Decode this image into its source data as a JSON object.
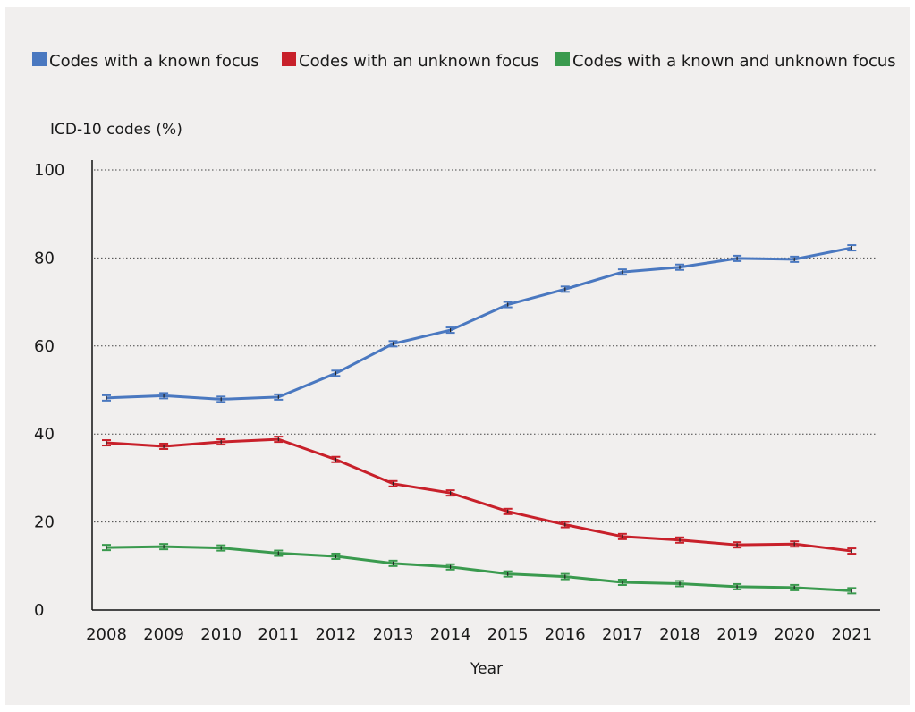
{
  "chart_data": {
    "type": "line",
    "title": "",
    "ylabel": "ICD-10 codes   (%)",
    "xlabel": "Year",
    "ylim": [
      0,
      100
    ],
    "yticks": [
      0,
      20,
      40,
      60,
      80,
      100
    ],
    "grid": "horizontal-dotted",
    "legend_position": "top",
    "categories": [
      "2008",
      "2009",
      "2010",
      "2011",
      "2012",
      "2013",
      "2014",
      "2015",
      "2016",
      "2017",
      "2018",
      "2019",
      "2020",
      "2021"
    ],
    "series": [
      {
        "name": "Codes with a known focus",
        "color": "#4a78c0",
        "values": [
          48.2,
          48.7,
          47.9,
          48.4,
          53.8,
          60.5,
          63.6,
          69.4,
          72.9,
          76.8,
          77.9,
          79.9,
          79.7,
          82.3
        ]
      },
      {
        "name": "Codes with an unknown focus",
        "color": "#c8202a",
        "values": [
          38.0,
          37.2,
          38.2,
          38.8,
          34.2,
          28.7,
          26.6,
          22.4,
          19.4,
          16.7,
          15.9,
          14.8,
          15.0,
          13.4
        ]
      },
      {
        "name": "Codes with a known and unknown focus",
        "color": "#3a9a4e",
        "values": [
          14.2,
          14.4,
          14.1,
          12.9,
          12.2,
          10.6,
          9.8,
          8.2,
          7.6,
          6.3,
          6.0,
          5.3,
          5.1,
          4.4
        ]
      }
    ]
  }
}
